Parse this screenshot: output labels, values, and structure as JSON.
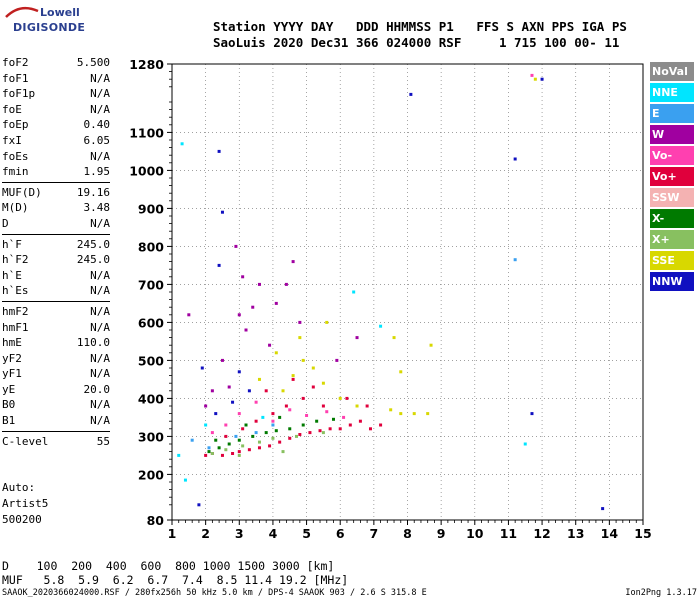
{
  "logo": {
    "top": "Lowell",
    "bottom": "DIGISONDE"
  },
  "header": {
    "line1": "Station YYYY DAY   DDD HHMMSS P1   FFS S AXN PPS IGA PS",
    "line2": "SaoLuis 2020 Dec31 366 024000 RSF     1 715 100 00- 11"
  },
  "params": [
    {
      "name": "foF2",
      "value": "5.500"
    },
    {
      "name": "foF1",
      "value": "N/A"
    },
    {
      "name": "foF1p",
      "value": "N/A"
    },
    {
      "name": "foE",
      "value": "N/A"
    },
    {
      "name": "foEp",
      "value": "0.40"
    },
    {
      "name": "fxI",
      "value": "6.05"
    },
    {
      "name": "foEs",
      "value": "N/A"
    },
    {
      "name": "fmin",
      "value": "1.95"
    },
    {
      "name": "MUF(D)",
      "value": "19.16"
    },
    {
      "name": "M(D)",
      "value": "3.48"
    },
    {
      "name": "D",
      "value": "N/A"
    },
    {
      "name": "h`F",
      "value": "245.0"
    },
    {
      "name": "h`F2",
      "value": "245.0"
    },
    {
      "name": "h`E",
      "value": "N/A"
    },
    {
      "name": "h`Es",
      "value": "N/A"
    },
    {
      "name": "hmF2",
      "value": "N/A"
    },
    {
      "name": "hmF1",
      "value": "N/A"
    },
    {
      "name": "hmE",
      "value": "110.0"
    },
    {
      "name": "yF2",
      "value": "N/A"
    },
    {
      "name": "yF1",
      "value": "N/A"
    },
    {
      "name": "yE",
      "value": "20.0"
    },
    {
      "name": "B0",
      "value": "N/A"
    },
    {
      "name": "B1",
      "value": "N/A"
    },
    {
      "name": "C-level",
      "value": "55"
    }
  ],
  "auto_block": [
    "Auto:",
    "Artist5",
    "500200"
  ],
  "legend": [
    {
      "label": "NoVal",
      "color": "#8c8c8c"
    },
    {
      "label": "NNE",
      "color": "#00e5ff"
    },
    {
      "label": "E",
      "color": "#3aa0f0"
    },
    {
      "label": "W",
      "color": "#a000a0"
    },
    {
      "label": "Vo-",
      "color": "#ff40b0"
    },
    {
      "label": "Vo+",
      "color": "#e0003c"
    },
    {
      "label": "SSW",
      "color": "#f4b2b2"
    },
    {
      "label": "X-",
      "color": "#007a00"
    },
    {
      "label": "X+",
      "color": "#88c060"
    },
    {
      "label": "SSE",
      "color": "#d8d800"
    },
    {
      "label": "NNW",
      "color": "#1010c0"
    }
  ],
  "muf_table": {
    "row_d": "D    100  200  400  600  800 1000 1500 3000 [km]",
    "row_muf": "MUF   5.8  5.9  6.2  6.7  7.4  8.5 11.4 19.2 [MHz]"
  },
  "footer": {
    "left": "SAAOK_2020366024000.RSF / 280fx256h 50 kHz 5.0 km / DPS-4 SAAOK 903 / 2.6 S 315.8 E",
    "right": "Ion2Png 1.3.17"
  },
  "chart_data": {
    "type": "scatter",
    "title": "",
    "xlabel": "",
    "ylabel": "",
    "xlim": [
      1,
      15
    ],
    "ylim": [
      80,
      1280
    ],
    "x_ticks": [
      1,
      2,
      3,
      4,
      5,
      6,
      7,
      8,
      9,
      10,
      11,
      12,
      13,
      14,
      15
    ],
    "y_ticks": [
      80,
      200,
      300,
      400,
      500,
      600,
      700,
      800,
      900,
      1000,
      1100,
      1280
    ],
    "grid": "dotted",
    "series": [
      {
        "color": "#e0003c",
        "points": [
          [
            2.0,
            250
          ],
          [
            2.2,
            255
          ],
          [
            2.5,
            250
          ],
          [
            2.8,
            255
          ],
          [
            3.0,
            260
          ],
          [
            3.3,
            265
          ],
          [
            3.6,
            270
          ],
          [
            3.9,
            275
          ],
          [
            4.2,
            285
          ],
          [
            4.5,
            295
          ],
          [
            4.8,
            305
          ],
          [
            5.1,
            310
          ],
          [
            5.4,
            315
          ],
          [
            5.7,
            320
          ],
          [
            6.0,
            320
          ],
          [
            6.3,
            330
          ],
          [
            6.6,
            340
          ],
          [
            6.9,
            320
          ],
          [
            7.2,
            330
          ],
          [
            2.6,
            300
          ],
          [
            3.1,
            320
          ],
          [
            3.5,
            340
          ],
          [
            4.0,
            360
          ],
          [
            4.4,
            380
          ],
          [
            4.9,
            400
          ],
          [
            5.5,
            380
          ],
          [
            6.2,
            400
          ],
          [
            6.8,
            380
          ],
          [
            3.8,
            420
          ],
          [
            4.6,
            450
          ],
          [
            5.2,
            430
          ]
        ]
      },
      {
        "color": "#007a00",
        "points": [
          [
            2.1,
            260
          ],
          [
            2.4,
            270
          ],
          [
            2.7,
            280
          ],
          [
            3.0,
            290
          ],
          [
            3.4,
            300
          ],
          [
            3.8,
            310
          ],
          [
            4.1,
            315
          ],
          [
            4.5,
            320
          ],
          [
            4.9,
            330
          ],
          [
            5.3,
            340
          ],
          [
            5.8,
            345
          ],
          [
            2.3,
            290
          ],
          [
            3.2,
            330
          ],
          [
            4.2,
            350
          ]
        ]
      },
      {
        "color": "#88c060",
        "points": [
          [
            2.2,
            255
          ],
          [
            2.6,
            265
          ],
          [
            3.1,
            275
          ],
          [
            3.6,
            285
          ],
          [
            4.0,
            295
          ],
          [
            4.7,
            300
          ],
          [
            5.5,
            310
          ],
          [
            3.0,
            250
          ],
          [
            4.3,
            260
          ]
        ]
      },
      {
        "color": "#d8d800",
        "points": [
          [
            4.3,
            420
          ],
          [
            4.6,
            460
          ],
          [
            4.9,
            500
          ],
          [
            5.2,
            480
          ],
          [
            5.5,
            440
          ],
          [
            6.0,
            400
          ],
          [
            6.5,
            380
          ],
          [
            7.5,
            370
          ],
          [
            7.8,
            360
          ],
          [
            8.2,
            360
          ],
          [
            8.6,
            360
          ],
          [
            7.8,
            470
          ],
          [
            7.6,
            560
          ],
          [
            8.7,
            540
          ],
          [
            3.6,
            450
          ],
          [
            4.1,
            520
          ],
          [
            4.8,
            560
          ],
          [
            5.6,
            600
          ],
          [
            11.8,
            1240
          ]
        ]
      },
      {
        "color": "#a000a0",
        "points": [
          [
            2.9,
            800
          ],
          [
            3.0,
            620
          ],
          [
            3.1,
            720
          ],
          [
            3.2,
            580
          ],
          [
            3.4,
            640
          ],
          [
            3.6,
            700
          ],
          [
            3.9,
            540
          ],
          [
            4.1,
            650
          ],
          [
            4.4,
            700
          ],
          [
            4.6,
            760
          ],
          [
            4.8,
            600
          ],
          [
            2.5,
            500
          ],
          [
            2.7,
            430
          ],
          [
            2.2,
            420
          ],
          [
            2.0,
            380
          ],
          [
            1.5,
            620
          ],
          [
            5.9,
            500
          ],
          [
            6.5,
            560
          ]
        ]
      },
      {
        "color": "#1010c0",
        "points": [
          [
            2.4,
            1050
          ],
          [
            2.5,
            890
          ],
          [
            2.4,
            750
          ],
          [
            3.0,
            470
          ],
          [
            3.3,
            420
          ],
          [
            2.8,
            390
          ],
          [
            2.3,
            360
          ],
          [
            1.9,
            480
          ],
          [
            8.1,
            1200
          ],
          [
            11.2,
            1030
          ],
          [
            12.0,
            1240
          ],
          [
            1.8,
            120
          ],
          [
            11.7,
            360
          ],
          [
            13.8,
            110
          ]
        ]
      },
      {
        "color": "#ff40b0",
        "points": [
          [
            2.6,
            330
          ],
          [
            3.0,
            360
          ],
          [
            3.5,
            390
          ],
          [
            4.0,
            340
          ],
          [
            4.5,
            370
          ],
          [
            5.0,
            355
          ],
          [
            5.6,
            365
          ],
          [
            6.1,
            350
          ],
          [
            2.2,
            310
          ],
          [
            11.7,
            1250
          ]
        ]
      },
      {
        "color": "#00e5ff",
        "points": [
          [
            1.3,
            1070
          ],
          [
            1.4,
            185
          ],
          [
            11.5,
            280
          ],
          [
            6.4,
            680
          ],
          [
            7.2,
            590
          ],
          [
            2.0,
            330
          ],
          [
            3.7,
            350
          ],
          [
            1.2,
            250
          ]
        ]
      },
      {
        "color": "#3aa0f0",
        "points": [
          [
            2.1,
            270
          ],
          [
            2.9,
            300
          ],
          [
            3.5,
            310
          ],
          [
            4.0,
            330
          ],
          [
            1.6,
            290
          ],
          [
            11.2,
            765
          ]
        ]
      }
    ]
  }
}
